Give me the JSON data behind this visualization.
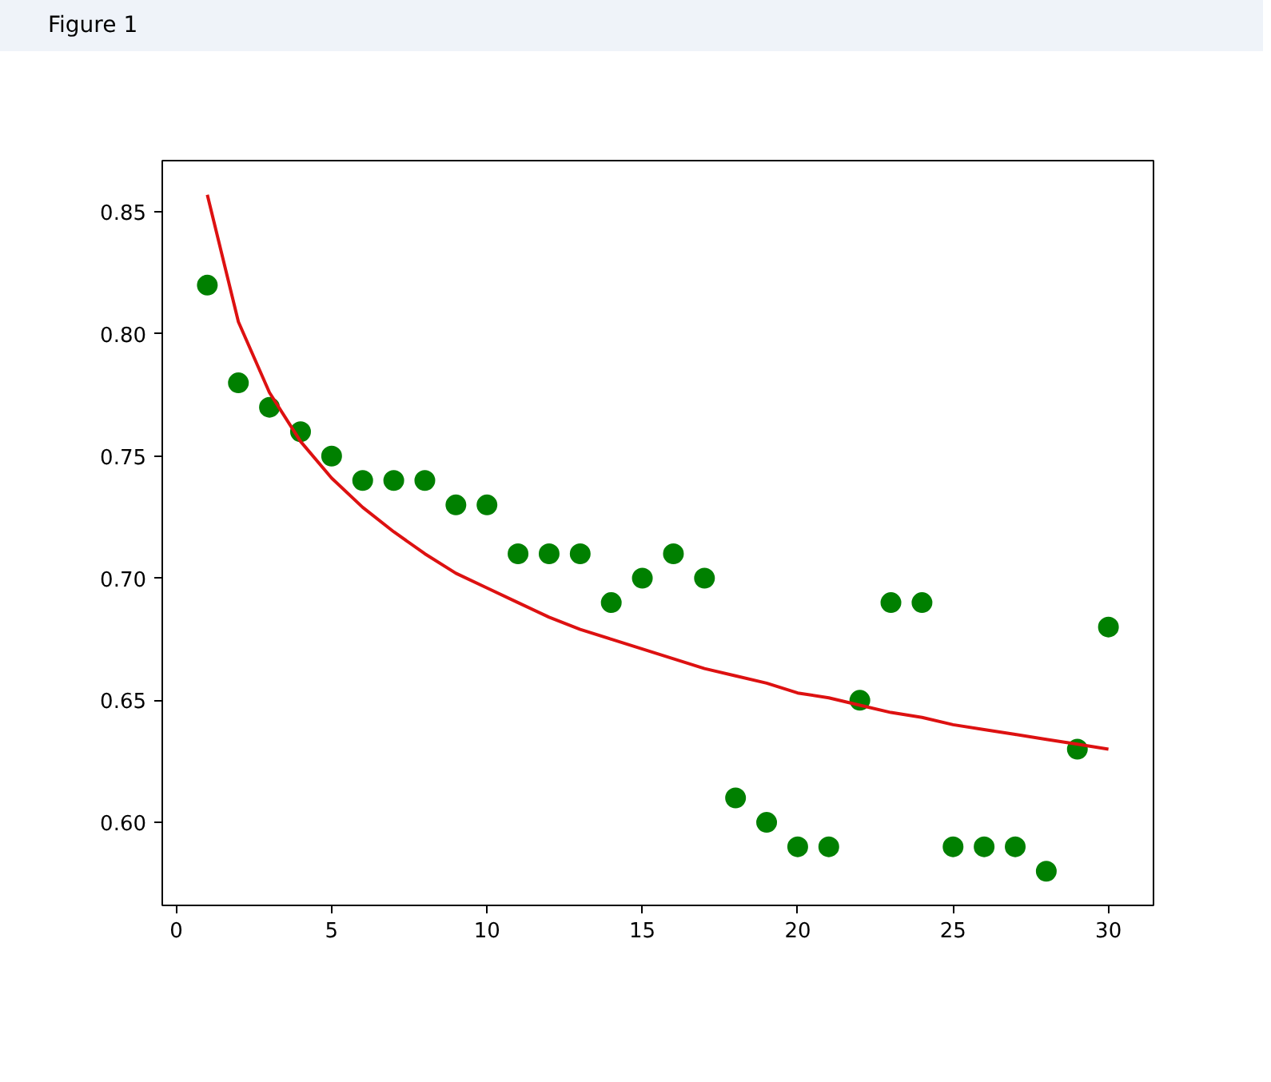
{
  "chart_data": {
    "type": "scatter",
    "annotations": [
      "Figure 1"
    ],
    "x": [
      1,
      2,
      3,
      4,
      5,
      6,
      7,
      8,
      9,
      10,
      11,
      12,
      13,
      14,
      15,
      16,
      17,
      18,
      19,
      20,
      21,
      22,
      23,
      24,
      25,
      26,
      27,
      28,
      29,
      30
    ],
    "series": [
      {
        "marker": "circle",
        "color": "#008000",
        "values": [
          0.82,
          0.78,
          0.77,
          0.76,
          0.75,
          0.74,
          0.74,
          0.74,
          0.73,
          0.73,
          0.71,
          0.71,
          0.71,
          0.69,
          0.7,
          0.71,
          0.7,
          0.61,
          0.6,
          0.59,
          0.59,
          0.65,
          0.69,
          0.69,
          0.59,
          0.59,
          0.59,
          0.58,
          0.63,
          0.68
        ]
      },
      {
        "type": "line",
        "marker": "none",
        "color": "#dd1111",
        "values": [
          0.857,
          0.805,
          0.776,
          0.756,
          0.741,
          0.729,
          0.719,
          0.71,
          0.702,
          0.696,
          0.69,
          0.684,
          0.679,
          0.675,
          0.671,
          0.667,
          0.663,
          0.66,
          0.657,
          0.653,
          0.651,
          0.648,
          0.645,
          0.643,
          0.64,
          0.638,
          0.636,
          0.634,
          0.632,
          0.63
        ]
      }
    ],
    "xlim": [
      -0.45,
      31.45
    ],
    "ylim": [
      0.566,
      0.871
    ],
    "xticks": [
      0,
      5,
      10,
      15,
      20,
      25,
      30
    ],
    "yticks": [
      {
        "value": 0.6,
        "label": "0.60"
      },
      {
        "value": 0.65,
        "label": "0.65"
      },
      {
        "value": 0.7,
        "label": "0.70"
      },
      {
        "value": 0.75,
        "label": "0.75"
      },
      {
        "value": 0.8,
        "label": "0.80"
      },
      {
        "value": 0.85,
        "label": "0.85"
      }
    ]
  }
}
